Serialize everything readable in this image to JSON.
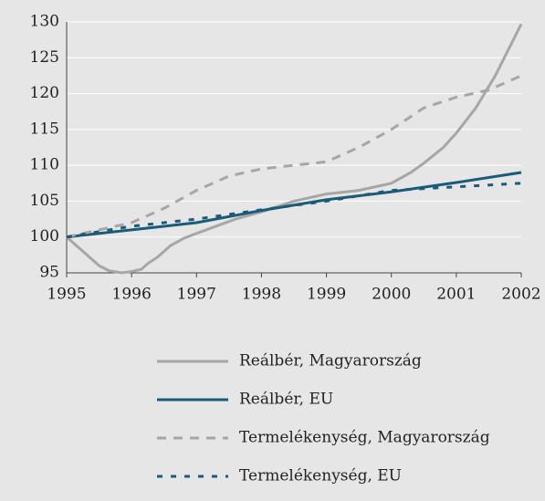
{
  "chart_data": {
    "type": "line",
    "xlim": [
      1995,
      2002
    ],
    "xticks": [
      1995,
      1996,
      1997,
      1998,
      1999,
      2000,
      2001,
      2002
    ],
    "ylim": [
      95,
      130
    ],
    "yticks": [
      95,
      100,
      105,
      110,
      115,
      120,
      125,
      130
    ],
    "grid": true,
    "legend": "bottom",
    "series": [
      {
        "name": "Reálbér, Magyarország",
        "color": "#a6a6a6",
        "dash": "solid",
        "x": [
          1995,
          1995.25,
          1995.5,
          1995.65,
          1995.85,
          1996,
          1996.15,
          1996.25,
          1996.4,
          1996.6,
          1996.8,
          1997,
          1997.3,
          1997.6,
          1998,
          1998.5,
          1999,
          1999.5,
          2000,
          2000.3,
          2000.5,
          2000.8,
          2001,
          2001.3,
          2001.6,
          2002
        ],
        "values": [
          100,
          98,
          96,
          95.3,
          95,
          95.2,
          95.5,
          96.3,
          97.2,
          98.8,
          99.8,
          100.5,
          101.5,
          102.5,
          103.5,
          105,
          106,
          106.5,
          107.5,
          109,
          110.3,
          112.5,
          114.5,
          118,
          122.5,
          129.7
        ]
      },
      {
        "name": "Reálbér, EU",
        "color": "#1b5b7a",
        "dash": "solid",
        "x": [
          1995,
          1996,
          1997,
          1998,
          1999,
          2000,
          2001,
          2002
        ],
        "values": [
          100,
          101,
          102,
          103.7,
          105.2,
          106.3,
          107.6,
          109
        ]
      },
      {
        "name": "Termelékenység, Magyarország",
        "color": "#a6a6a6",
        "dash": "dashed",
        "x": [
          1995,
          1995.5,
          1996,
          1996.5,
          1997,
          1997.5,
          1998,
          1998.5,
          1999,
          1999.5,
          2000,
          2000.5,
          2001,
          2001.5,
          2002
        ],
        "values": [
          100,
          101,
          102,
          104,
          106.5,
          108.5,
          109.5,
          110,
          110.5,
          112.5,
          115,
          118,
          119.5,
          120.5,
          122.5
        ]
      },
      {
        "name": "Termelékenység, EU",
        "color": "#1b5b7a",
        "dash": "dotted",
        "x": [
          1995,
          1996,
          1997,
          1998,
          1999,
          2000,
          2001,
          2002
        ],
        "values": [
          100,
          101.5,
          102.5,
          103.8,
          105,
          106.5,
          107,
          107.5
        ]
      }
    ]
  }
}
